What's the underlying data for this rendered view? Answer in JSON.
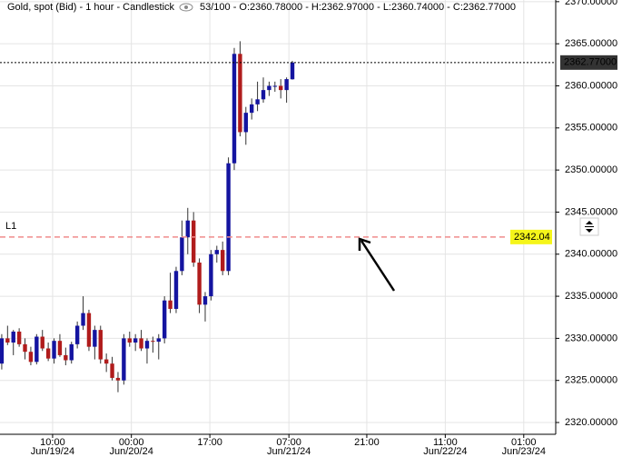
{
  "chart_data": {
    "type": "candlestick",
    "title": "Gold, spot (Bid) - 1 hour - Candlestick",
    "info": "53/100 - O:2360.78000 - H:2362.97000 - L:2360.74000 - C:2362.77000",
    "up_color": "#1414a0",
    "down_color": "#b01c1c",
    "grid": true,
    "open": [
      2327.0,
      2330.0,
      2329.5,
      2330.8,
      2329.3,
      2328.4,
      2327.2,
      2330.2,
      2328.8,
      2327.6,
      2329.7,
      2328.0,
      2327.4,
      2329.3,
      2331.5,
      2333.0,
      2329.0,
      2331.0,
      2327.5,
      2327.0,
      2325.3,
      2325.0,
      2330.0,
      2329.5,
      2330.0,
      2328.8,
      2329.7,
      2329.6,
      2330.0,
      2334.5,
      2333.5,
      2338.0,
      2342.0,
      2344.0,
      2339.0,
      2334.0,
      2335.0,
      2340.0,
      2340.5,
      2338.0,
      2350.8,
      2363.8,
      2354.5,
      2356.8,
      2357.8,
      2358.4,
      2359.5,
      2360.0,
      2360.0,
      2359.5,
      2360.78
    ],
    "high": [
      2330.5,
      2331.5,
      2331.0,
      2331.2,
      2330.0,
      2329.0,
      2330.5,
      2331.0,
      2329.5,
      2330.0,
      2330.5,
      2328.9,
      2329.6,
      2332.0,
      2335.0,
      2333.4,
      2331.5,
      2331.5,
      2328.2,
      2327.8,
      2326.0,
      2330.5,
      2330.8,
      2330.5,
      2331.0,
      2330.0,
      2330.2,
      2330.5,
      2335.0,
      2337.8,
      2338.5,
      2344.0,
      2345.5,
      2345.0,
      2339.5,
      2335.5,
      2340.5,
      2341.0,
      2341.5,
      2351.5,
      2364.5,
      2365.3,
      2357.5,
      2358.5,
      2360.5,
      2361.0,
      2360.5,
      2360.5,
      2360.8,
      2361.0,
      2362.97
    ],
    "low": [
      2326.3,
      2329.2,
      2328.0,
      2329.0,
      2327.5,
      2326.8,
      2326.9,
      2328.5,
      2327.3,
      2327.0,
      2327.8,
      2326.8,
      2327.0,
      2328.8,
      2331.0,
      2328.5,
      2327.5,
      2327.0,
      2326.0,
      2325.0,
      2323.6,
      2324.5,
      2329.0,
      2328.5,
      2328.5,
      2327.0,
      2328.3,
      2327.5,
      2329.4,
      2333.0,
      2333.0,
      2337.5,
      2340.0,
      2338.5,
      2333.0,
      2332.0,
      2334.5,
      2339.0,
      2337.5,
      2337.5,
      2350.0,
      2354.0,
      2353.0,
      2356.0,
      2357.0,
      2358.0,
      2358.8,
      2359.3,
      2358.5,
      2358.0,
      2360.74
    ],
    "close": [
      2330.0,
      2329.5,
      2330.8,
      2329.3,
      2328.4,
      2327.2,
      2330.2,
      2328.8,
      2327.6,
      2329.7,
      2328.0,
      2327.4,
      2329.3,
      2331.5,
      2333.0,
      2329.0,
      2331.0,
      2327.5,
      2327.0,
      2325.3,
      2325.0,
      2330.0,
      2329.5,
      2330.0,
      2328.8,
      2329.7,
      2329.6,
      2330.0,
      2334.5,
      2333.5,
      2338.0,
      2342.0,
      2344.0,
      2339.0,
      2334.0,
      2335.0,
      2340.0,
      2340.5,
      2338.0,
      2350.8,
      2363.8,
      2354.5,
      2356.8,
      2357.8,
      2358.4,
      2359.5,
      2360.0,
      2360.0,
      2359.5,
      2360.8,
      2362.77
    ],
    "xlim": [
      -0.3,
      95.3
    ],
    "xticks": [
      {
        "value": 8.75,
        "label": "10:00",
        "date": "Jun/19/24"
      },
      {
        "value": 22.3,
        "label": "00:00",
        "date": "Jun/20/24"
      },
      {
        "value": 35.8,
        "label": "17:00"
      },
      {
        "value": 49.4,
        "label": "07:00",
        "date": "Jun/21/24"
      },
      {
        "value": 62.8,
        "label": "21:00"
      },
      {
        "value": 76.3,
        "label": "11:00",
        "date": "Jun/22/24"
      },
      {
        "value": 89.8,
        "label": "01:00",
        "date": "Jun/23/24"
      }
    ],
    "ylim": [
      2318.6,
      2370.2
    ],
    "yticks": [
      {
        "value": 2320,
        "label": "2320.00000"
      },
      {
        "value": 2325,
        "label": "2325.00000"
      },
      {
        "value": 2330,
        "label": "2330.00000"
      },
      {
        "value": 2335,
        "label": "2335.00000"
      },
      {
        "value": 2340,
        "label": "2340.00000"
      },
      {
        "value": 2345,
        "label": "2345.00000"
      },
      {
        "value": 2350,
        "label": "2350.00000"
      },
      {
        "value": 2355,
        "label": "2355.00000"
      },
      {
        "value": 2360,
        "label": "2360.00000"
      },
      {
        "value": 2365,
        "label": "2365.00000"
      },
      {
        "value": 2370,
        "label": "2370.00000"
      }
    ],
    "last_price": {
      "value": 2362.77,
      "label": "2362.77000"
    },
    "level": {
      "name": "L1",
      "value": 2342.04,
      "color": "#f08c8c"
    }
  }
}
